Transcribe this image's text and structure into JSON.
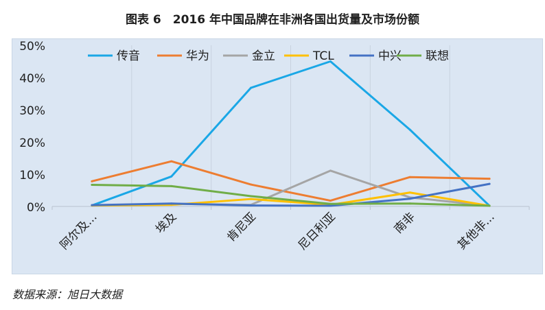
{
  "title": "图表 6　2016 年中国品牌在非洲各国出货量及市场份额",
  "source": "数据来源：旭日大数据",
  "chart_data": {
    "type": "line",
    "categories": [
      "阿尔及...",
      "埃及",
      "肯尼亚",
      "尼日利亚",
      "南非",
      "其他非..."
    ],
    "ylim": [
      0,
      50
    ],
    "yticks": [
      "0%",
      "10%",
      "20%",
      "30%",
      "40%",
      "50%"
    ],
    "ytick_values": [
      0,
      10,
      20,
      30,
      40,
      50
    ],
    "grid": "vertical",
    "legend_position": "top",
    "series": [
      {
        "name": "传音",
        "color": "#1aa7e6",
        "values": [
          0.3,
          9.3,
          36.8,
          45.0,
          23.8,
          0.2
        ]
      },
      {
        "name": "华为",
        "color": "#ed7d31",
        "values": [
          7.8,
          14.0,
          6.8,
          1.8,
          9.1,
          8.6
        ]
      },
      {
        "name": "金立",
        "color": "#a5a5a5",
        "values": [
          0.3,
          0.8,
          0.5,
          11.1,
          2.8,
          0.2
        ]
      },
      {
        "name": "TCL",
        "color": "#ffc000",
        "values": [
          0.3,
          0.5,
          2.3,
          0.5,
          4.3,
          0.2
        ]
      },
      {
        "name": "中兴",
        "color": "#4472c4",
        "values": [
          0.4,
          0.9,
          0.3,
          0.2,
          2.4,
          7.0
        ]
      },
      {
        "name": "联想",
        "color": "#70ad47",
        "values": [
          6.7,
          6.3,
          3.2,
          0.8,
          0.9,
          0.2
        ]
      }
    ]
  }
}
